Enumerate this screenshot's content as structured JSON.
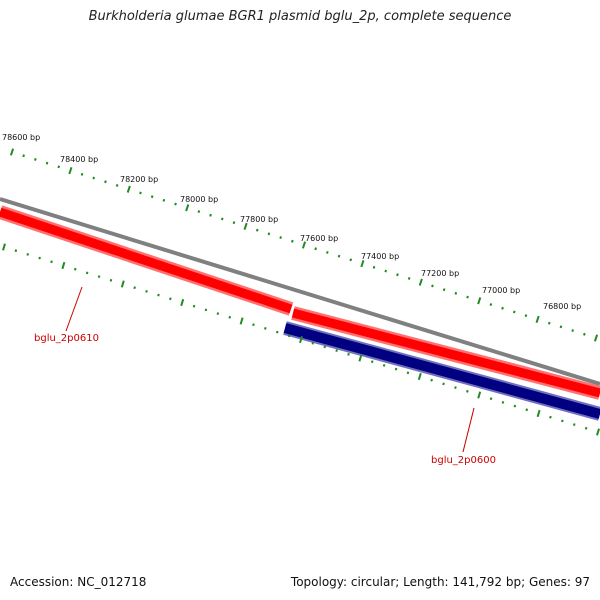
{
  "title": "Burkholderia glumae BGR1 plasmid bglu_2p, complete sequence",
  "footer": {
    "accession": "Accession: NC_012718",
    "summary": "Topology: circular; Length: 141,792 bp; Genes: 97"
  },
  "colors": {
    "backbone": "#808080",
    "forward_gene": "#ff0000",
    "forward_gene_edge": "#ff7070",
    "reverse_gene": "#000080",
    "reverse_gene_edge": "#7070c0",
    "tick": "#228b22",
    "gene_label": "#cc0000"
  },
  "ruler_labels": [
    "78600 bp",
    "78400 bp",
    "78200 bp",
    "78000 bp",
    "77800 bp",
    "77600 bp",
    "77400 bp",
    "77200 bp",
    "77000 bp",
    "76800 bp"
  ],
  "genes": [
    {
      "label": "bglu_2p0610",
      "strand": "forward"
    },
    {
      "label": "bglu_2p0600",
      "strand": "forward"
    },
    {
      "label": "",
      "strand": "reverse"
    }
  ]
}
